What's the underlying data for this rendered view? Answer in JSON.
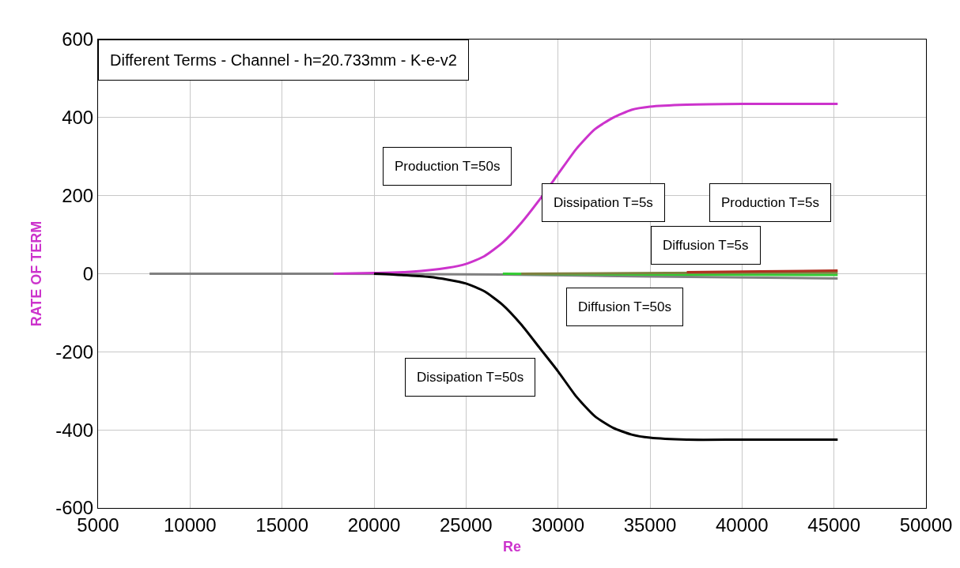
{
  "chart_data": {
    "type": "line",
    "title": "Different Terms - Channel - h=20.733mm - K-e-v2",
    "xlabel": "Re",
    "ylabel": "RATE OF TERM",
    "xlim": [
      5000,
      50000
    ],
    "xticks": [
      5000,
      10000,
      15000,
      20000,
      25000,
      30000,
      35000,
      40000,
      45000,
      50000
    ],
    "ylim": [
      -600,
      600
    ],
    "yticks": [
      -600,
      -400,
      -200,
      0,
      200,
      400,
      600
    ],
    "grid": true,
    "marker": "none",
    "line_style": "solid",
    "series": [
      {
        "color": "#808080",
        "x": [
          7800,
          17800,
          27000,
          35000,
          45200
        ],
        "values": [
          0,
          0,
          -2,
          -7,
          -12
        ]
      },
      {
        "color": "#33cc33",
        "x": [
          27000,
          35000,
          45200
        ],
        "values": [
          0,
          -2,
          -3
        ]
      },
      {
        "color": "#808040",
        "x": [
          28000,
          36000,
          45200
        ],
        "values": [
          0,
          2,
          3
        ]
      },
      {
        "color": "#b03020",
        "x": [
          37000,
          41000,
          45200
        ],
        "values": [
          4,
          6,
          8
        ]
      },
      {
        "color": "#cc33cc",
        "x": [
          17800,
          20000,
          22000,
          24000,
          25000,
          26000,
          27000,
          28000,
          29000,
          30000,
          31000,
          32000,
          33000,
          34000,
          35000,
          37000,
          40000,
          45200
        ],
        "values": [
          0,
          2,
          5,
          15,
          25,
          45,
          80,
          130,
          190,
          255,
          320,
          370,
          400,
          420,
          428,
          433,
          435,
          435
        ]
      },
      {
        "color": "#000000",
        "x": [
          20000,
          21000,
          23000,
          24000,
          25000,
          26000,
          27000,
          28000,
          29000,
          30000,
          31000,
          32000,
          33000,
          34000,
          35000,
          37000,
          40000,
          45200
        ],
        "values": [
          0,
          -2,
          -8,
          -15,
          -25,
          -45,
          -80,
          -130,
          -190,
          -250,
          -315,
          -365,
          -395,
          -412,
          -420,
          -425,
          -425,
          -425
        ]
      }
    ],
    "annotations": [
      "Production T=50s",
      "Dissipation T=5s",
      "Production T=5s",
      "Diffusion T=5s",
      "Diffusion T=50s",
      "Dissipation T=50s"
    ]
  }
}
